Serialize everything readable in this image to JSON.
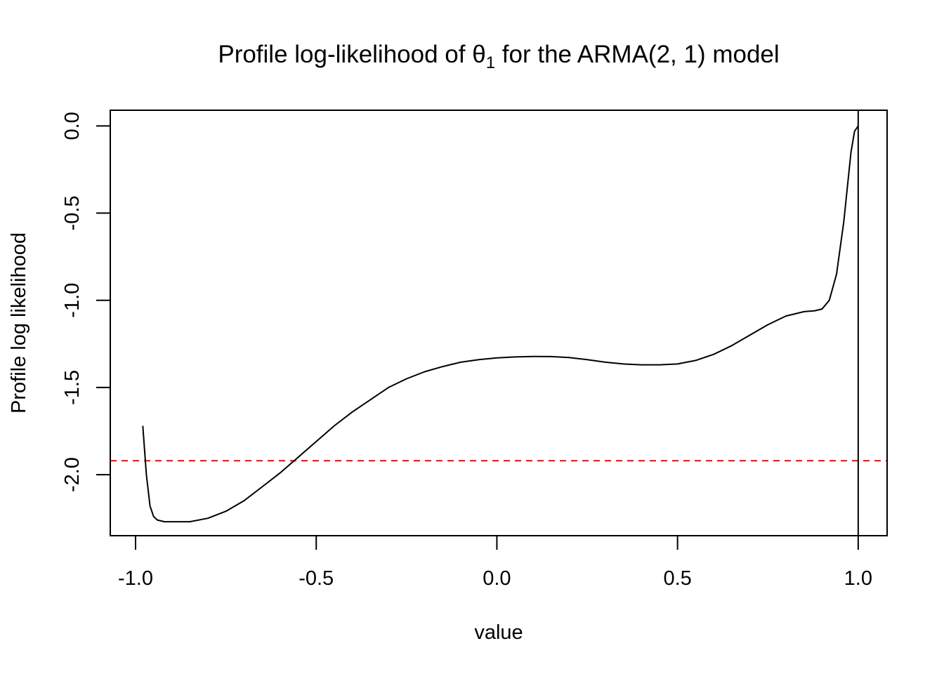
{
  "chart_data": {
    "type": "line",
    "title_prefix": "Profile log-likelihood of ",
    "title_symbol": "θ",
    "title_subscript": "1",
    "title_suffix": " for the ARMA(2, 1) model",
    "xlabel": "value",
    "ylabel": "Profile log likelihood",
    "xlim": [
      -1.07,
      1.08
    ],
    "ylim": [
      -2.35,
      0.09
    ],
    "xticks": [
      -1.0,
      -0.5,
      0.0,
      0.5,
      1.0
    ],
    "xtick_labels": [
      "-1.0",
      "-0.5",
      "0.0",
      "0.5",
      "1.0"
    ],
    "yticks": [
      0.0,
      -0.5,
      -1.0,
      -1.5,
      -2.0
    ],
    "ytick_labels": [
      "0.0",
      "-0.5",
      "-1.0",
      "-1.5",
      "-2.0"
    ],
    "grid": false,
    "series": [
      {
        "color": "#000000",
        "style": "solid",
        "x": [
          -0.98,
          -0.97,
          -0.96,
          -0.95,
          -0.94,
          -0.92,
          -0.9,
          -0.85,
          -0.8,
          -0.75,
          -0.7,
          -0.65,
          -0.6,
          -0.55,
          -0.5,
          -0.45,
          -0.4,
          -0.35,
          -0.3,
          -0.25,
          -0.2,
          -0.15,
          -0.1,
          -0.05,
          0.0,
          0.05,
          0.1,
          0.15,
          0.2,
          0.25,
          0.3,
          0.35,
          0.4,
          0.45,
          0.5,
          0.55,
          0.6,
          0.65,
          0.7,
          0.75,
          0.8,
          0.85,
          0.88,
          0.9,
          0.92,
          0.94,
          0.96,
          0.98,
          0.99,
          1.0
        ],
        "y": [
          -1.72,
          -2.0,
          -2.18,
          -2.24,
          -2.26,
          -2.27,
          -2.27,
          -2.27,
          -2.25,
          -2.21,
          -2.15,
          -2.07,
          -1.99,
          -1.9,
          -1.81,
          -1.72,
          -1.64,
          -1.57,
          -1.5,
          -1.45,
          -1.41,
          -1.38,
          -1.355,
          -1.34,
          -1.33,
          -1.325,
          -1.322,
          -1.323,
          -1.328,
          -1.34,
          -1.355,
          -1.365,
          -1.37,
          -1.37,
          -1.365,
          -1.345,
          -1.31,
          -1.26,
          -1.2,
          -1.14,
          -1.09,
          -1.065,
          -1.06,
          -1.05,
          -1.0,
          -0.85,
          -0.55,
          -0.15,
          -0.03,
          0.0
        ]
      }
    ],
    "hlines": [
      {
        "y": -1.92,
        "color": "#ff0000",
        "style": "dashed"
      }
    ],
    "vlines": [
      {
        "x": 1.0,
        "color": "#000000",
        "style": "solid"
      }
    ]
  }
}
